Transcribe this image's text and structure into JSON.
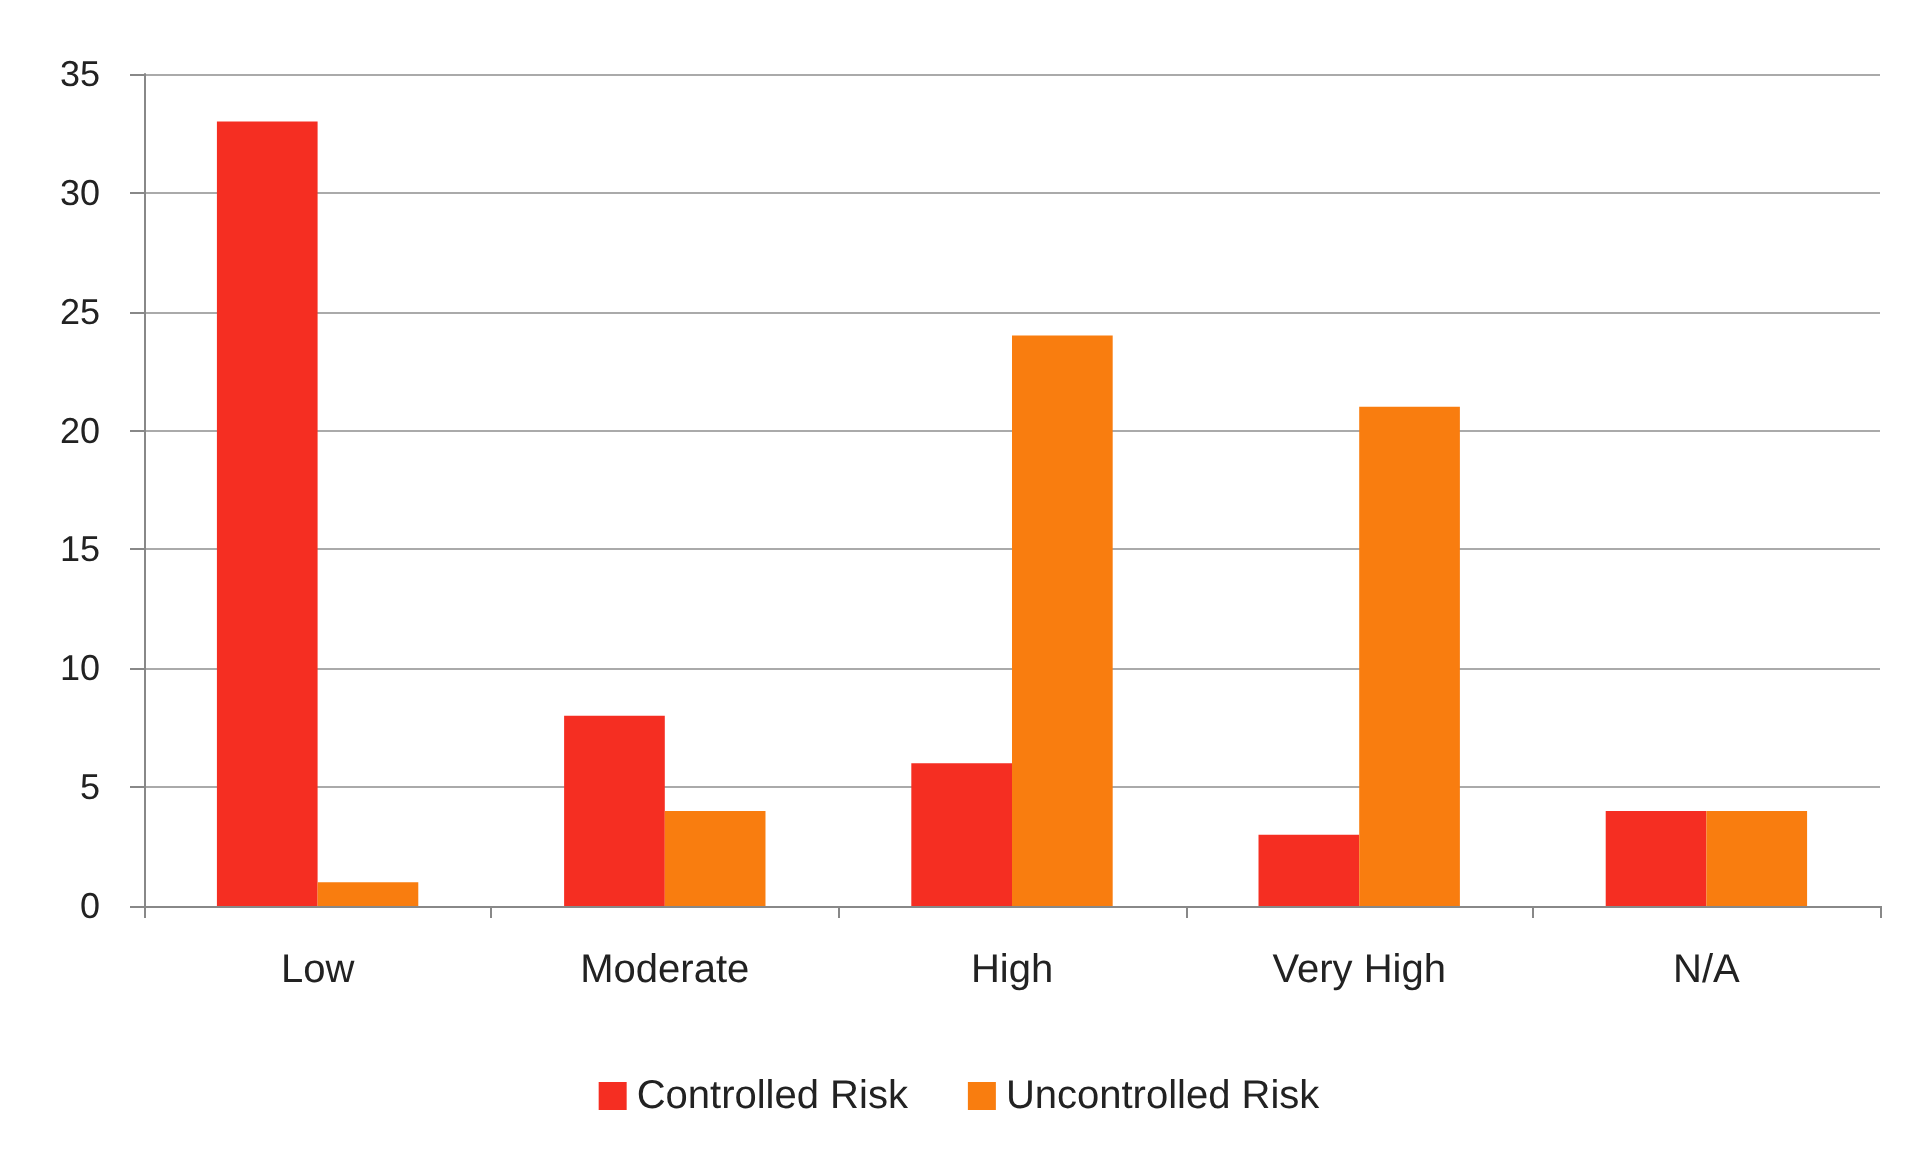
{
  "chart_data": {
    "type": "bar",
    "categories": [
      "Low",
      "Moderate",
      "High",
      "Very High",
      "N/A"
    ],
    "series": [
      {
        "name": "Controlled Risk",
        "color": "#f52e22",
        "values": [
          33,
          8,
          6,
          3,
          4
        ]
      },
      {
        "name": "Uncontrolled Risk",
        "color": "#f97d0f",
        "values": [
          1,
          4,
          24,
          21,
          4
        ]
      }
    ],
    "ylim": [
      0,
      35
    ],
    "yticks": [
      0,
      5,
      10,
      15,
      20,
      25,
      30,
      35
    ],
    "grid": "y",
    "legend": "bottom"
  }
}
